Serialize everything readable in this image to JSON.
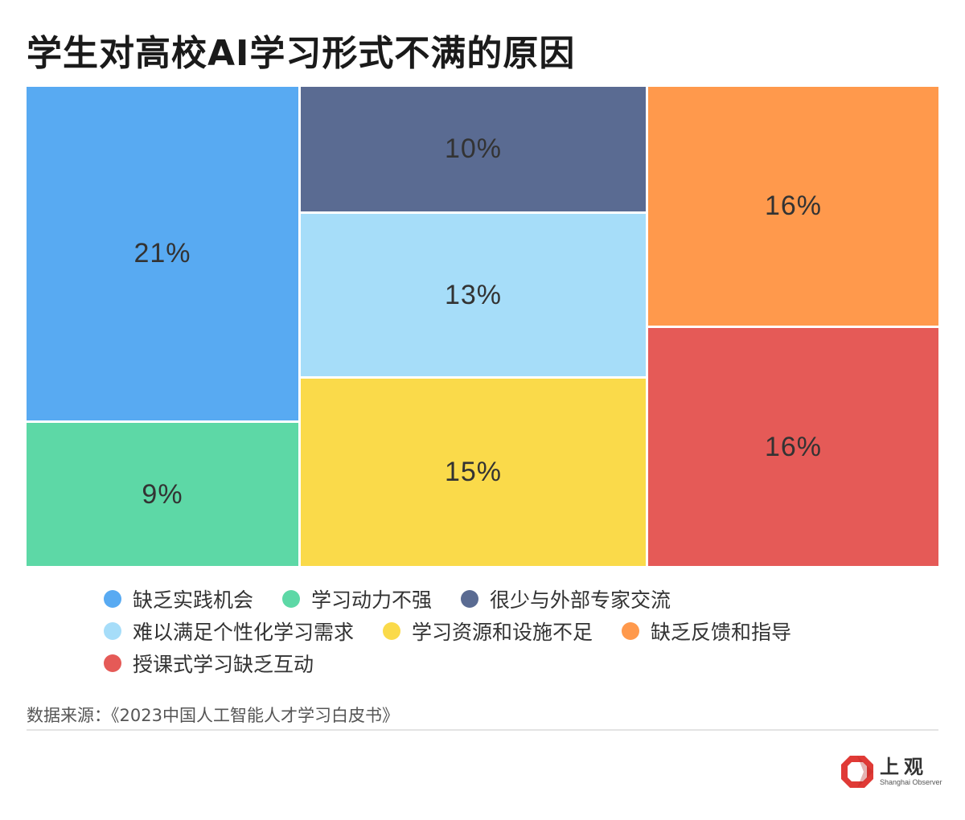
{
  "title": "学生对高校AI学习形式不满的原因",
  "chart_data": {
    "type": "treemap",
    "title": "学生对高校AI学习形式不满的原因",
    "series": [
      {
        "name": "缺乏实践机会",
        "value": 21,
        "label": "21%",
        "color": "#58AAF2"
      },
      {
        "name": "学习动力不强",
        "value": 9,
        "label": "9%",
        "color": "#5DD8A6"
      },
      {
        "name": "很少与外部专家交流",
        "value": 10,
        "label": "10%",
        "color": "#5A6B92"
      },
      {
        "name": "难以满足个性化学习需求",
        "value": 13,
        "label": "13%",
        "color": "#A6DDF9"
      },
      {
        "name": "学习资源和设施不足",
        "value": 15,
        "label": "15%",
        "color": "#FADA4A"
      },
      {
        "name": "缺乏反馈和指导",
        "value": 16,
        "label": "16%",
        "color": "#FF994C"
      },
      {
        "name": "授课式学习缺乏互动",
        "value": 16,
        "label": "16%",
        "color": "#E55A57"
      }
    ],
    "legend_position": "bottom"
  },
  "source": "数据来源：《2023中国人工智能人才学习白皮书》",
  "logo": {
    "cn": "上观",
    "en": "Shanghai Observer",
    "color": "#E03A36"
  }
}
